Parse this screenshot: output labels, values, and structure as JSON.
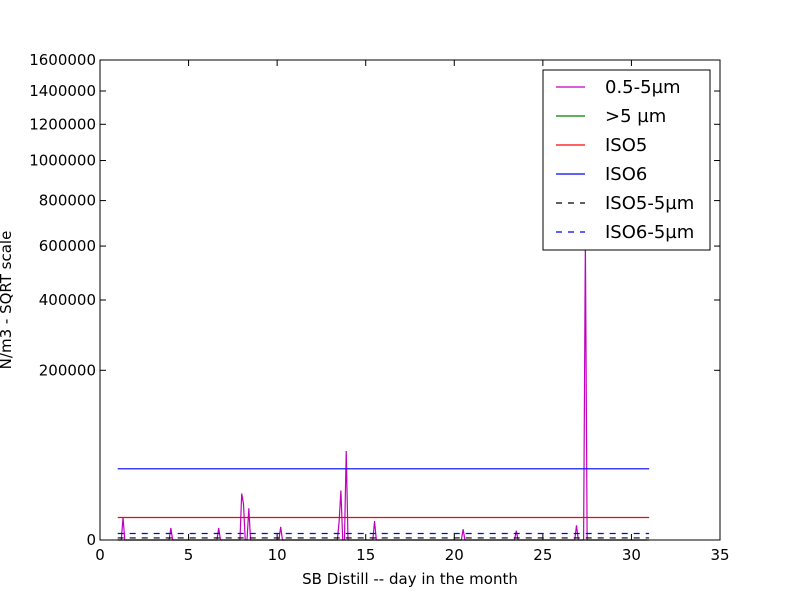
{
  "chart_data": {
    "type": "line",
    "title": "",
    "xlabel": "SB Distill -- day in the month",
    "ylabel": "N/m3 - SQRT scale",
    "y_scale": "sqrt",
    "xlim": [
      0,
      35
    ],
    "ylim": [
      0,
      1600000
    ],
    "x_ticks": [
      0,
      5,
      10,
      15,
      20,
      25,
      30,
      35
    ],
    "y_ticks": [
      0,
      200000,
      400000,
      600000,
      800000,
      1000000,
      1200000,
      1400000,
      1600000
    ],
    "grid": false,
    "legend_position": "top-right",
    "series": [
      {
        "name": "0.5-5µm",
        "color": "#bf00bf",
        "style": "solid",
        "x": [
          1.0,
          1.2,
          1.3,
          1.4,
          3.9,
          4.0,
          4.1,
          6.6,
          6.7,
          6.8,
          7.9,
          8.0,
          8.1,
          8.2,
          8.3,
          8.4,
          8.5,
          8.6,
          10.1,
          10.2,
          10.3,
          13.4,
          13.5,
          13.6,
          13.7,
          13.8,
          13.9,
          14.0,
          15.4,
          15.5,
          15.6,
          20.4,
          20.5,
          20.6,
          23.4,
          23.5,
          23.6,
          26.8,
          26.9,
          27.0,
          27.3,
          27.4,
          27.5,
          27.6,
          30.5,
          30.9
        ],
        "y": [
          0,
          0,
          3500,
          0,
          0,
          1000,
          0,
          0,
          1000,
          0,
          0,
          15000,
          9000,
          0,
          0,
          7000,
          0,
          0,
          0,
          1200,
          0,
          0,
          2500,
          17000,
          0,
          0,
          55000,
          0,
          0,
          2500,
          0,
          0,
          800,
          0,
          0,
          600,
          0,
          0,
          1500,
          0,
          0,
          620000,
          0,
          0,
          0,
          0
        ]
      },
      {
        "name": ">5 µm",
        "color": "#008000",
        "style": "solid",
        "x": [
          1,
          31
        ],
        "y": [
          0,
          0
        ]
      },
      {
        "name": "ISO5",
        "color": "#ff0000",
        "style": "solid",
        "x": [
          1,
          31
        ],
        "y": [
          3520,
          3520
        ]
      },
      {
        "name": "ISO6",
        "color": "#0000ff",
        "style": "solid",
        "x": [
          1,
          31
        ],
        "y": [
          35200,
          35200
        ]
      },
      {
        "name": "ISO5-5µm",
        "color": "#000000",
        "style": "dashed",
        "x": [
          1,
          31
        ],
        "y": [
          29,
          29
        ]
      },
      {
        "name": "ISO6-5µm",
        "color": "#0000ff",
        "style": "dashed",
        "x": [
          1,
          31
        ],
        "y": [
          293,
          293
        ]
      }
    ]
  }
}
